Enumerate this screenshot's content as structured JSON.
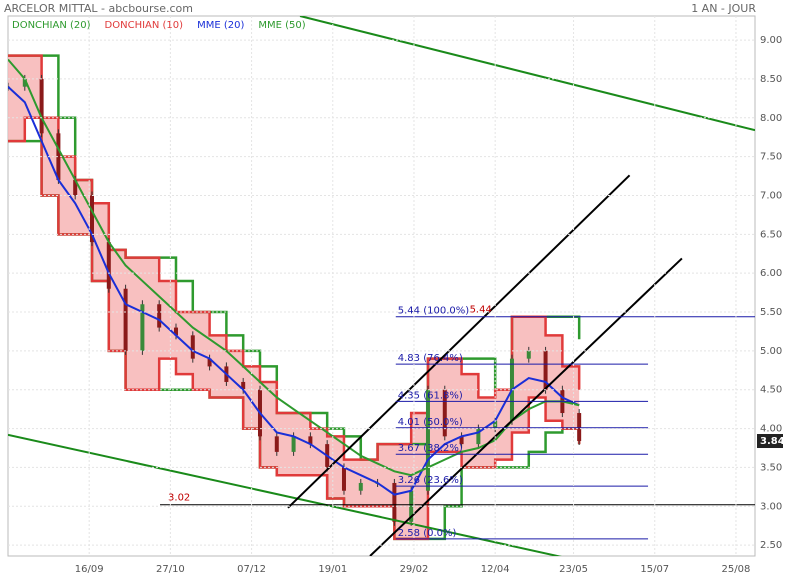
{
  "chart_data": {
    "type": "stock",
    "title": "ARCELOR MITTAL - abcbourse.com",
    "period": "1 AN - JOUR",
    "xlim": [
      0,
      266.8
    ],
    "ylim": [
      2.36,
      9.31
    ],
    "xticks": [
      {
        "value": 29,
        "label": "16/09"
      },
      {
        "value": 58,
        "label": "27/10"
      },
      {
        "value": 87,
        "label": "07/12"
      },
      {
        "value": 116,
        "label": "19/01"
      },
      {
        "value": 145,
        "label": "29/02"
      },
      {
        "value": 174,
        "label": "12/04"
      },
      {
        "value": 202,
        "label": "23/05"
      },
      {
        "value": 231,
        "label": "15/07"
      },
      {
        "value": 260,
        "label": "25/08"
      }
    ],
    "yticks": [
      {
        "value": 2.5,
        "label": "2.50"
      },
      {
        "value": 3,
        "label": "3.00"
      },
      {
        "value": 3.5,
        "label": "3.50"
      },
      {
        "value": 4,
        "label": "4.00"
      },
      {
        "value": 4.5,
        "label": "4.50"
      },
      {
        "value": 5,
        "label": "5.00"
      },
      {
        "value": 5.5,
        "label": "5.50"
      },
      {
        "value": 6,
        "label": "6.00"
      },
      {
        "value": 6.5,
        "label": "6.50"
      },
      {
        "value": 7,
        "label": "7.00"
      },
      {
        "value": 7.5,
        "label": "7.50"
      },
      {
        "value": 8,
        "label": "8.00"
      },
      {
        "value": 8.5,
        "label": "8.50"
      },
      {
        "value": 9,
        "label": "9.00"
      }
    ],
    "grid": true,
    "x": [
      0,
      6,
      12,
      18,
      24,
      30,
      36,
      42,
      48,
      54,
      60,
      66,
      72,
      78,
      84,
      90,
      96,
      102,
      108,
      114,
      120,
      126,
      132,
      138,
      144,
      150,
      156,
      162,
      168,
      174,
      180,
      186,
      192,
      198,
      204
    ],
    "price": {
      "color": "#333333",
      "values": [
        8.4,
        8.5,
        7.8,
        7.2,
        7.0,
        6.4,
        5.8,
        5.0,
        5.6,
        5.3,
        5.2,
        4.9,
        4.8,
        4.6,
        4.5,
        3.9,
        3.7,
        3.9,
        3.8,
        3.5,
        3.2,
        3.3,
        3.3,
        2.8,
        3.2,
        4.5,
        3.9,
        3.8,
        4.0,
        4.1,
        4.9,
        5.0,
        4.5,
        4.2,
        3.84
      ]
    },
    "series": [
      {
        "name": "DONCHIAN (20)",
        "color": "#2e9a2e",
        "upper": [
          8.8,
          8.8,
          8.8,
          8.0,
          7.2,
          6.9,
          6.3,
          6.2,
          6.2,
          6.2,
          5.9,
          5.5,
          5.5,
          5.2,
          5.0,
          4.8,
          4.2,
          4.2,
          4.2,
          4.0,
          3.9,
          3.6,
          3.8,
          3.8,
          3.8,
          4.9,
          4.9,
          4.9,
          4.9,
          4.5,
          5.44,
          5.44,
          5.44,
          5.44,
          5.15
        ],
        "lower": [
          7.7,
          7.7,
          7.0,
          6.5,
          6.5,
          5.9,
          5.0,
          4.5,
          4.5,
          4.5,
          4.5,
          4.5,
          4.4,
          4.4,
          4.0,
          3.5,
          3.4,
          3.4,
          3.4,
          3.1,
          3.0,
          3.0,
          3.0,
          2.58,
          2.58,
          2.58,
          3.0,
          3.5,
          3.5,
          3.5,
          3.5,
          3.7,
          3.95,
          4.0,
          3.8
        ]
      },
      {
        "name": "DONCHIAN (10)",
        "color": "#e03a3a",
        "fill": "#f7b5b5",
        "upper": [
          8.8,
          8.8,
          8.0,
          7.5,
          7.2,
          6.9,
          6.3,
          6.2,
          6.2,
          5.9,
          5.5,
          5.5,
          5.2,
          5.0,
          4.8,
          4.6,
          4.2,
          4.2,
          4.0,
          3.9,
          3.6,
          3.6,
          3.8,
          3.8,
          4.2,
          4.9,
          4.9,
          4.7,
          4.4,
          4.5,
          5.44,
          5.44,
          5.2,
          4.8,
          4.5
        ],
        "lower": [
          7.7,
          8.0,
          7.0,
          6.5,
          6.5,
          5.9,
          5.0,
          4.5,
          4.5,
          4.9,
          4.7,
          4.5,
          4.4,
          4.4,
          4.0,
          3.5,
          3.4,
          3.4,
          3.4,
          3.1,
          3.0,
          3.0,
          3.0,
          2.58,
          2.58,
          3.7,
          3.7,
          3.5,
          3.5,
          3.6,
          3.95,
          4.4,
          4.1,
          4.0,
          3.8
        ]
      },
      {
        "name": "MME (20)",
        "color": "#1a2fd8",
        "values": [
          8.4,
          8.2,
          7.7,
          7.2,
          6.9,
          6.5,
          6.0,
          5.6,
          5.5,
          5.4,
          5.2,
          5.0,
          4.9,
          4.7,
          4.5,
          4.2,
          3.95,
          3.9,
          3.8,
          3.65,
          3.5,
          3.4,
          3.3,
          3.15,
          3.2,
          3.6,
          3.8,
          3.9,
          3.95,
          4.1,
          4.5,
          4.65,
          4.6,
          4.4,
          4.3
        ]
      },
      {
        "name": "MME (50)",
        "color": "#2e9a2e",
        "values": [
          8.75,
          8.5,
          8.0,
          7.6,
          7.2,
          6.8,
          6.4,
          6.1,
          5.9,
          5.7,
          5.5,
          5.3,
          5.15,
          5.0,
          4.8,
          4.6,
          4.4,
          4.25,
          4.1,
          3.95,
          3.8,
          3.65,
          3.55,
          3.45,
          3.4,
          3.5,
          3.6,
          3.7,
          3.75,
          3.85,
          4.1,
          4.25,
          4.35,
          4.35,
          4.3
        ]
      }
    ],
    "trend_lines": [
      {
        "color": "#1a8a1a",
        "x": [
          104.3,
          266.8
        ],
        "y": [
          9.31,
          7.84
        ]
      },
      {
        "color": "#1a8a1a",
        "x": [
          0,
          202.5
        ],
        "y": [
          3.92,
          2.31
        ]
      },
      {
        "color": "#000000",
        "x": [
          100,
          222
        ],
        "y": [
          2.98,
          7.26
        ]
      },
      {
        "color": "#000000",
        "x": [
          129.3,
          240.7
        ],
        "y": [
          2.36,
          6.19
        ]
      }
    ],
    "fibonacci": {
      "color": "#1a1aa8",
      "x": [
        138.5,
        228.6
      ],
      "levels": [
        {
          "value": 5.44,
          "label": "5.44  (100.0%)"
        },
        {
          "value": 4.83,
          "label": "4.83  (76.4%)"
        },
        {
          "value": 4.35,
          "label": "4.35  (61.8%)"
        },
        {
          "value": 4.01,
          "label": "4.01  (50.0%)"
        },
        {
          "value": 3.67,
          "label": "3.67  (38.2%)"
        },
        {
          "value": 3.26,
          "label": "3.26  (23.6%)"
        },
        {
          "value": 2.58,
          "label": "2.58  (0.0%)"
        }
      ]
    },
    "levels": [
      {
        "value": 3.02,
        "label": "3.02",
        "x": [
          54.3,
          266.8
        ],
        "color": "#000000"
      },
      {
        "value": 5.44,
        "label": "5.44",
        "x": [
          162
        ],
        "color": "#c00000"
      }
    ]
  }
}
